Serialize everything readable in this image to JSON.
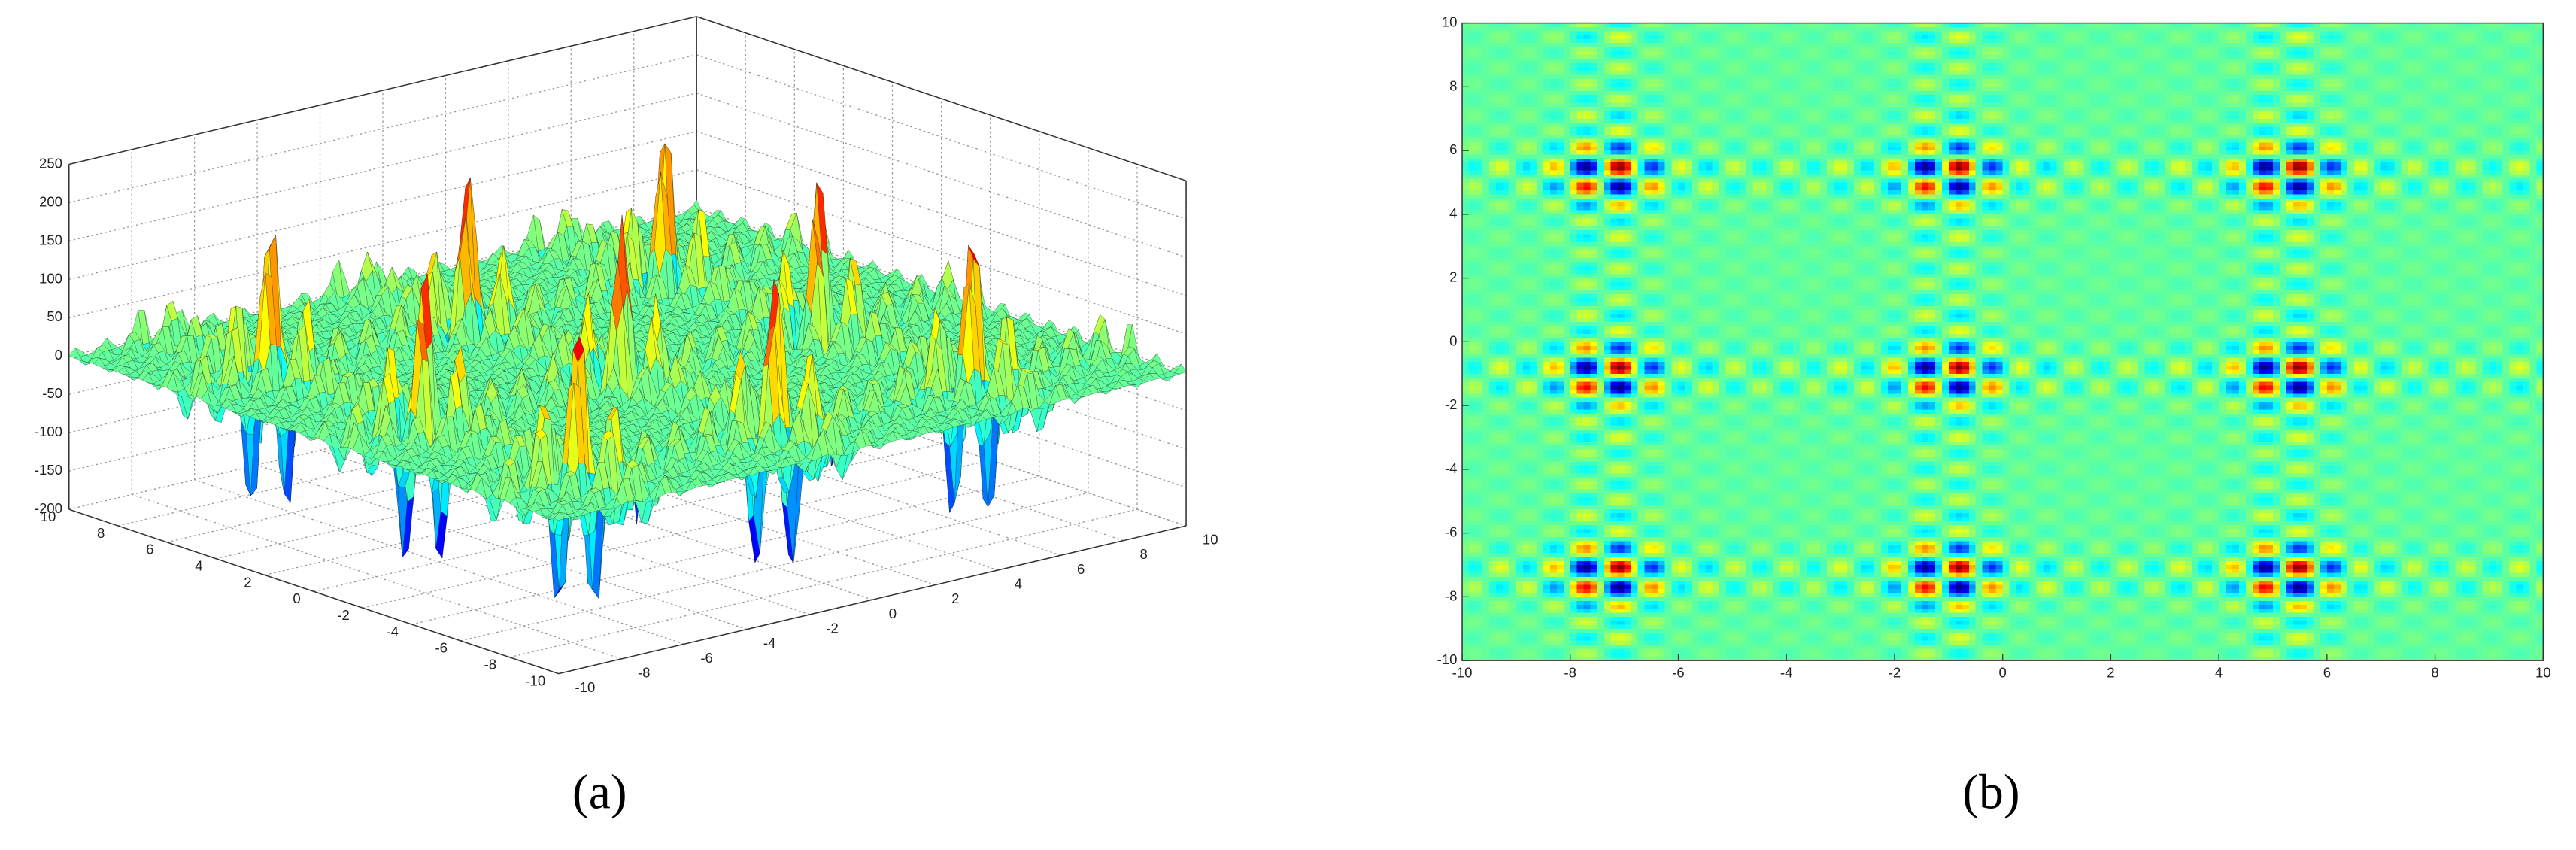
{
  "chart_data": [
    {
      "type": "surface",
      "xlim": [
        -10,
        10
      ],
      "xticks": [
        -10,
        -8,
        -6,
        -4,
        -2,
        0,
        2,
        4,
        6,
        8,
        10
      ],
      "ylim": [
        -10,
        10
      ],
      "yticks": [
        -10,
        -8,
        -6,
        -4,
        -2,
        0,
        2,
        4,
        6,
        8,
        10
      ],
      "zlim": [
        -200,
        250
      ],
      "zticks": [
        -200,
        -150,
        -100,
        -50,
        0,
        50,
        100,
        150,
        200,
        250
      ],
      "grid": true,
      "caption": "(a)"
    },
    {
      "type": "heatmap",
      "xlim": [
        -10,
        10
      ],
      "xticks": [
        -10,
        -8,
        -6,
        -4,
        -2,
        0,
        2,
        4,
        6,
        8,
        10
      ],
      "ylim": [
        -10,
        10
      ],
      "yticks": [
        -10,
        -8,
        -6,
        -4,
        -2,
        0,
        2,
        4,
        6,
        8,
        10
      ],
      "caption": "(b)"
    }
  ]
}
